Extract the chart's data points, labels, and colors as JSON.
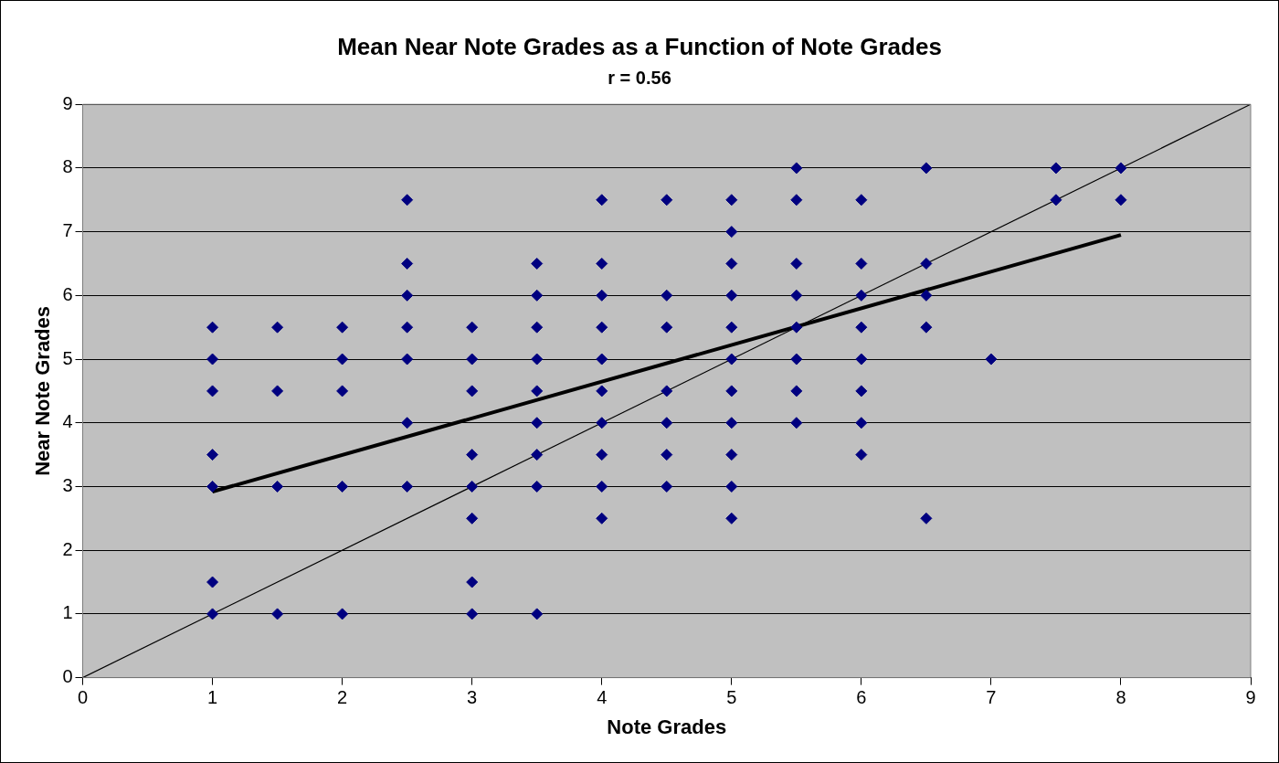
{
  "chart_data": {
    "type": "scatter",
    "title": "Mean Near Note Grades as a Function of Note Grades",
    "subtitle": "r = 0.56",
    "xlabel": "Note Grades",
    "ylabel": "Near Note Grades",
    "xlim": [
      0,
      9
    ],
    "ylim": [
      0,
      9
    ],
    "xticks": [
      0,
      1,
      2,
      3,
      4,
      5,
      6,
      7,
      8,
      9
    ],
    "yticks": [
      0,
      1,
      2,
      3,
      4,
      5,
      6,
      7,
      8,
      9
    ],
    "grid": "y",
    "legend": false,
    "marker": "diamond",
    "series": [
      {
        "color": "#000080",
        "x": [
          1,
          1,
          1,
          1,
          1,
          1,
          1,
          1.5,
          1.5,
          1.5,
          1.5,
          2,
          2,
          2,
          2,
          2,
          2.5,
          2.5,
          2.5,
          2.5,
          2.5,
          2.5,
          2.5,
          3,
          3,
          3,
          3,
          3,
          3,
          3,
          3,
          3.5,
          3.5,
          3.5,
          3.5,
          3.5,
          3.5,
          3.5,
          3.5,
          3.5,
          4,
          4,
          4,
          4,
          4,
          4,
          4,
          4,
          4,
          4,
          4.5,
          4.5,
          4.5,
          4.5,
          4.5,
          4.5,
          4.5,
          5,
          5,
          5,
          5,
          5,
          5,
          5,
          5,
          5,
          5,
          5,
          5.5,
          5.5,
          5.5,
          5.5,
          5.5,
          5.5,
          5.5,
          5.5,
          6,
          6,
          6,
          6,
          6,
          6,
          6,
          6,
          6.5,
          6.5,
          6.5,
          6.5,
          6.5,
          7,
          7.5,
          7.5,
          8,
          8
        ],
        "values": [
          5.5,
          5,
          4.5,
          3.5,
          3,
          1.5,
          1,
          5.5,
          4.5,
          3,
          1,
          5.5,
          5,
          4.5,
          3,
          1,
          7.5,
          6.5,
          6,
          5.5,
          5,
          4,
          3,
          5.5,
          5,
          4.5,
          3.5,
          3,
          2.5,
          1.5,
          1,
          6.5,
          6,
          5.5,
          5,
          4.5,
          4,
          3.5,
          3,
          1,
          7.5,
          6.5,
          6,
          5.5,
          5,
          4.5,
          4,
          3.5,
          3,
          2.5,
          7.5,
          6,
          5.5,
          4.5,
          4,
          3.5,
          3,
          7.5,
          7,
          6.5,
          6,
          5.5,
          5,
          4.5,
          4,
          3.5,
          3,
          2.5,
          8,
          7.5,
          6.5,
          6,
          5.5,
          5,
          4.5,
          4,
          7.5,
          6.5,
          6,
          5.5,
          5,
          4.5,
          4,
          3.5,
          8,
          6.5,
          6,
          5.5,
          2.5,
          5,
          8,
          7.5,
          8,
          7.5
        ]
      },
      {
        "type": "line",
        "color": "#000000",
        "marker": "none",
        "x": [
          1,
          8
        ],
        "values": [
          2.92,
          6.95
        ]
      },
      {
        "type": "line",
        "color": "#000000",
        "marker": "none",
        "x": [
          0,
          9
        ],
        "values": [
          0,
          9
        ]
      }
    ]
  }
}
